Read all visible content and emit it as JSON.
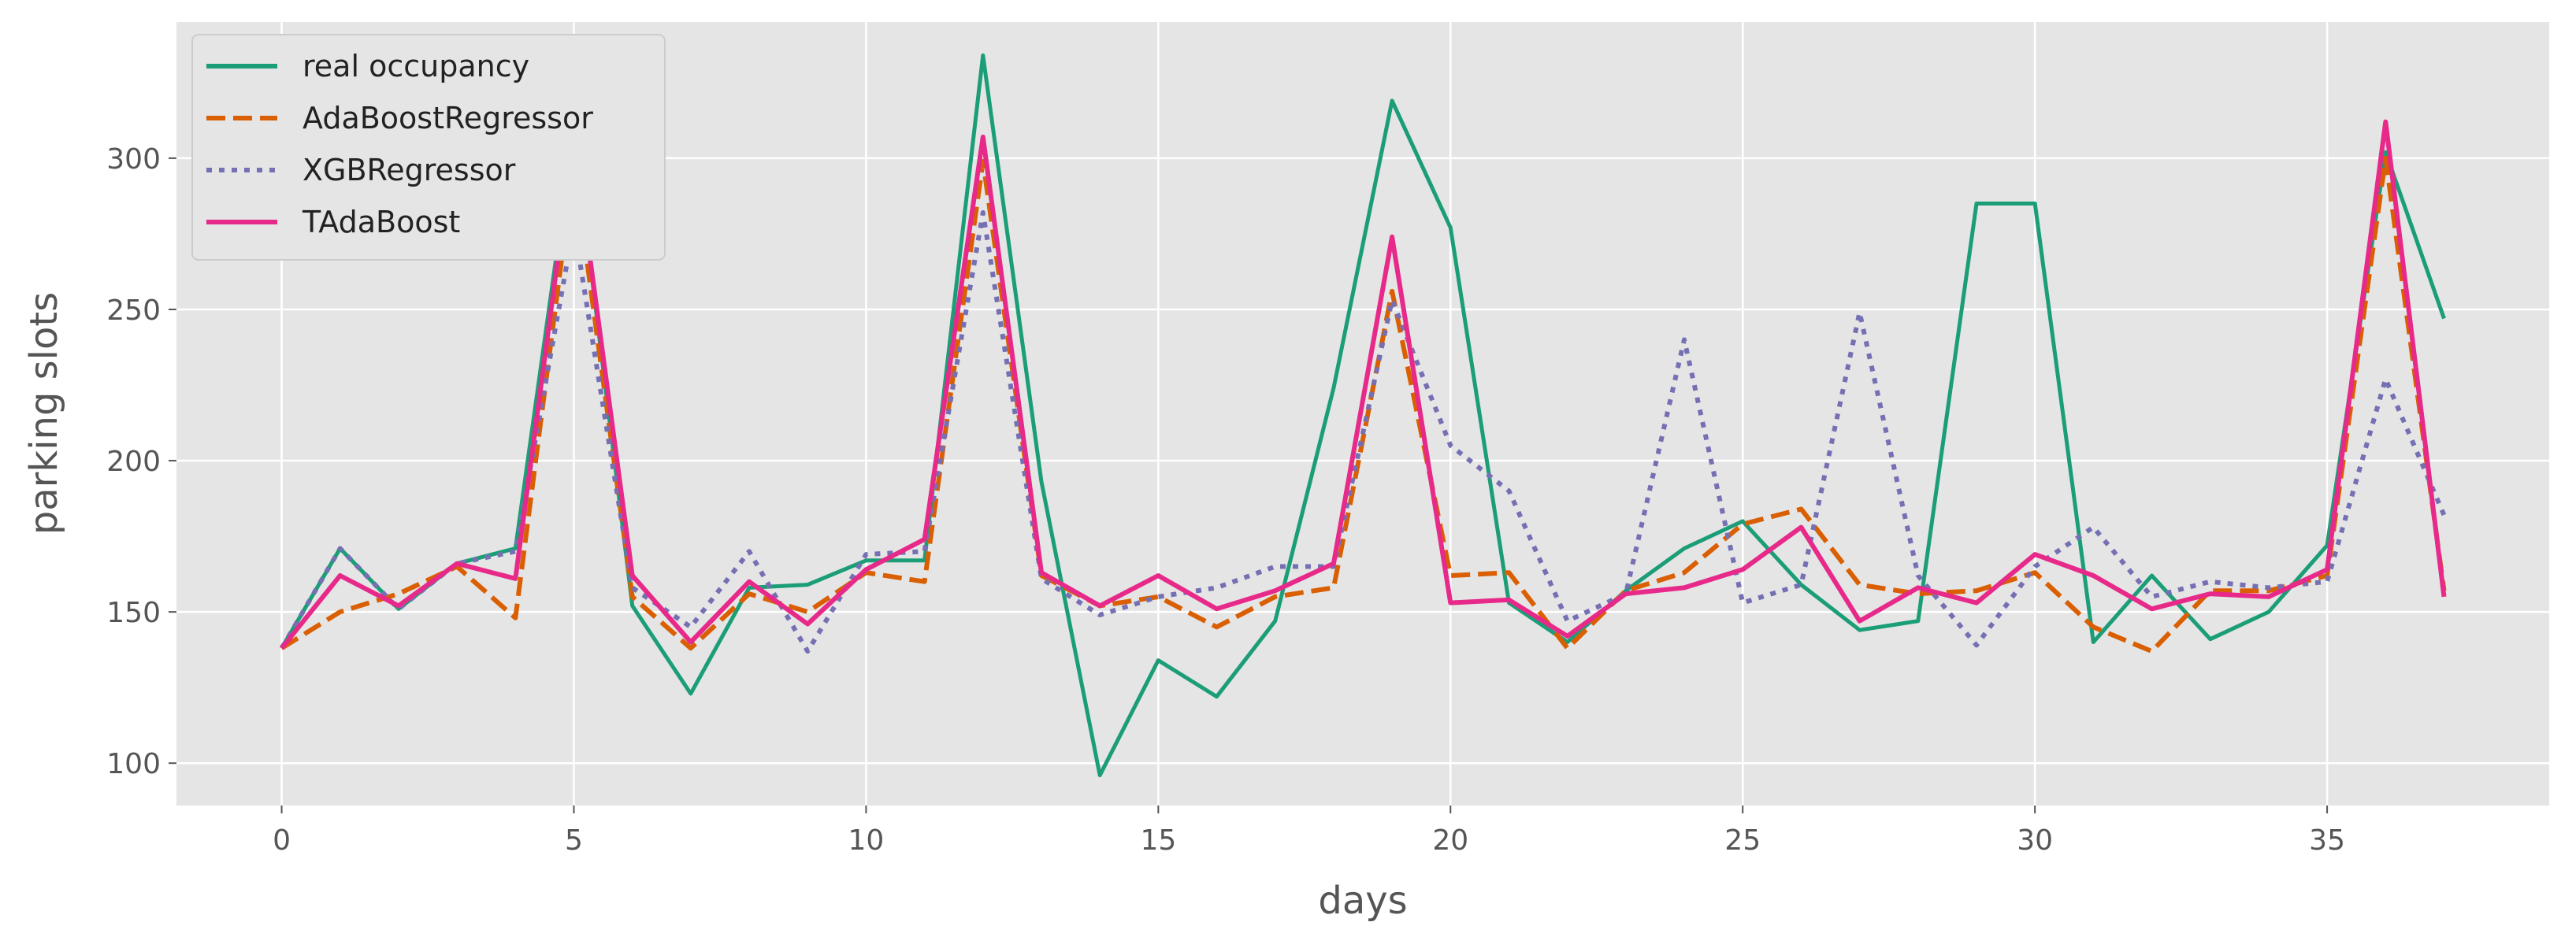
{
  "chart_data": {
    "type": "line",
    "title": "",
    "xlabel": "days",
    "ylabel": "parking slots",
    "xlim": [
      -1.8,
      38.8
    ],
    "ylim": [
      86,
      345
    ],
    "xticks": [
      0,
      5,
      10,
      15,
      20,
      25,
      30,
      35
    ],
    "yticks": [
      100,
      150,
      200,
      250,
      300
    ],
    "grid": true,
    "legend_position": "top-left",
    "x": [
      0,
      1,
      2,
      3,
      4,
      5,
      6,
      7,
      8,
      9,
      10,
      11,
      12,
      13,
      14,
      15,
      16,
      17,
      18,
      19,
      20,
      21,
      22,
      23,
      24,
      25,
      26,
      27,
      28,
      29,
      30,
      31,
      32,
      33,
      34,
      35,
      36,
      37
    ],
    "series": [
      {
        "name": "real occupancy",
        "color": "#1b9e77",
        "style": "solid",
        "values": [
          138,
          171,
          151,
          166,
          171,
          309,
          152,
          123,
          158,
          159,
          167,
          167,
          334,
          193,
          96,
          134,
          122,
          147,
          224,
          319,
          277,
          153,
          140,
          157,
          171,
          180,
          159,
          144,
          147,
          285,
          285,
          140,
          162,
          141,
          150,
          172,
          302,
          247
        ]
      },
      {
        "name": "AdaBoostRegressor",
        "color": "#d95f02",
        "style": "dashed",
        "values": [
          138,
          150,
          156,
          165,
          148,
          298,
          155,
          138,
          156,
          150,
          163,
          160,
          299,
          162,
          152,
          155,
          145,
          155,
          158,
          256,
          162,
          163,
          138,
          157,
          163,
          179,
          184,
          159,
          156,
          157,
          163,
          145,
          137,
          157,
          157,
          162,
          300,
          157
        ]
      },
      {
        "name": "XGBRegressor",
        "color": "#7570b3",
        "style": "dotted",
        "values": [
          138,
          171,
          151,
          166,
          170,
          278,
          158,
          145,
          170,
          137,
          169,
          170,
          282,
          161,
          149,
          155,
          158,
          165,
          165,
          253,
          205,
          190,
          147,
          156,
          240,
          153,
          159,
          249,
          162,
          139,
          165,
          178,
          155,
          160,
          158,
          160,
          227,
          182
        ]
      },
      {
        "name": "TAdaBoost",
        "color": "#e7298a",
        "style": "solid",
        "values": [
          138,
          162,
          152,
          166,
          161,
          307,
          162,
          140,
          160,
          146,
          164,
          174,
          307,
          163,
          152,
          162,
          151,
          157,
          166,
          274,
          153,
          154,
          142,
          156,
          158,
          164,
          178,
          147,
          158,
          153,
          169,
          162,
          151,
          156,
          155,
          164,
          312,
          155
        ]
      }
    ]
  }
}
